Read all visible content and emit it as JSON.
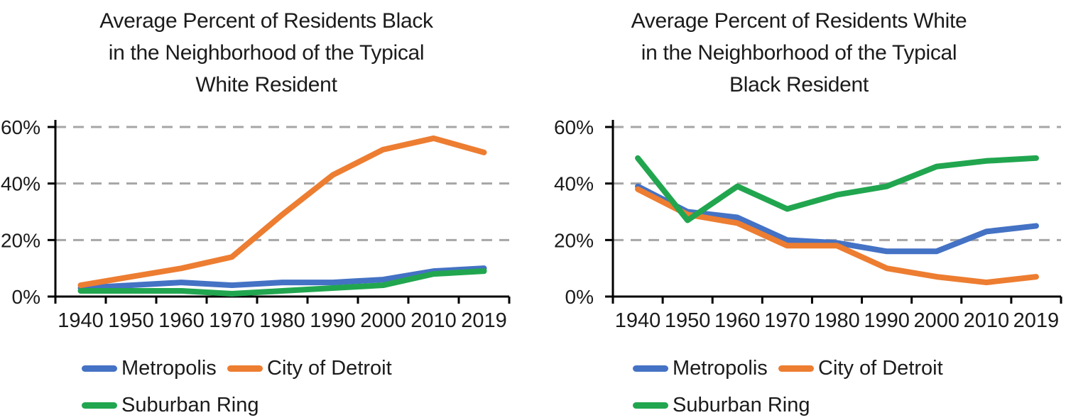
{
  "styles": {
    "axis_color": "#000000",
    "gridline_color": "#a6a6a6",
    "text_color": "#1b1b1b",
    "series_colors": {
      "metropolis": "#4472C4",
      "city_of_detroit": "#ED7D31",
      "suburban_ring": "#21A64F"
    }
  },
  "chart_data": [
    {
      "type": "line",
      "title": "Average Percent of Residents Black in the Neighborhood of the Typical White Resident",
      "title_lines": [
        "Average Percent of Residents Black",
        "in the Neighborhood of the Typical",
        "White Resident"
      ],
      "categories": [
        "1940",
        "1950",
        "1960",
        "1970",
        "1980",
        "1990",
        "2000",
        "2010",
        "2019"
      ],
      "series": [
        {
          "name": "Metropolis",
          "color": "#4472C4",
          "values": [
            3,
            4,
            5,
            4,
            5,
            5,
            6,
            9,
            10
          ]
        },
        {
          "name": "City of Detroit",
          "color": "#ED7D31",
          "values": [
            4,
            7,
            10,
            14,
            29,
            43,
            52,
            56,
            51
          ]
        },
        {
          "name": "Suburban Ring",
          "color": "#21A64F",
          "values": [
            2,
            2,
            2,
            1,
            2,
            3,
            4,
            8,
            9
          ]
        }
      ],
      "xlabel": "",
      "ylabel": "",
      "ylim": [
        0,
        60
      ],
      "ytick_values": [
        0,
        20,
        40,
        60
      ],
      "ytick_labels": [
        "0%",
        "20%",
        "40%",
        "60%"
      ],
      "grid": "horizontal-dashed",
      "legend_position": "bottom"
    },
    {
      "type": "line",
      "title": "Average Percent of Residents White in the Neighborhood of the Typical Black Resident",
      "title_lines": [
        "Average Percent of Residents White",
        "in the Neighborhood of the Typical",
        "Black Resident"
      ],
      "categories": [
        "1940",
        "1950",
        "1960",
        "1970",
        "1980",
        "1990",
        "2000",
        "2010",
        "2019"
      ],
      "series": [
        {
          "name": "Metropolis",
          "color": "#4472C4",
          "values": [
            39,
            30,
            28,
            20,
            19,
            16,
            16,
            23,
            25
          ]
        },
        {
          "name": "City of Detroit",
          "color": "#ED7D31",
          "values": [
            38,
            29,
            26,
            18,
            18,
            10,
            7,
            5,
            7
          ]
        },
        {
          "name": "Suburban Ring",
          "color": "#21A64F",
          "values": [
            49,
            27,
            39,
            31,
            36,
            39,
            46,
            48,
            49
          ]
        }
      ],
      "xlabel": "",
      "ylabel": "",
      "ylim": [
        0,
        60
      ],
      "ytick_values": [
        0,
        20,
        40,
        60
      ],
      "ytick_labels": [
        "0%",
        "20%",
        "40%",
        "60%"
      ],
      "grid": "horizontal-dashed",
      "legend_position": "bottom"
    }
  ]
}
